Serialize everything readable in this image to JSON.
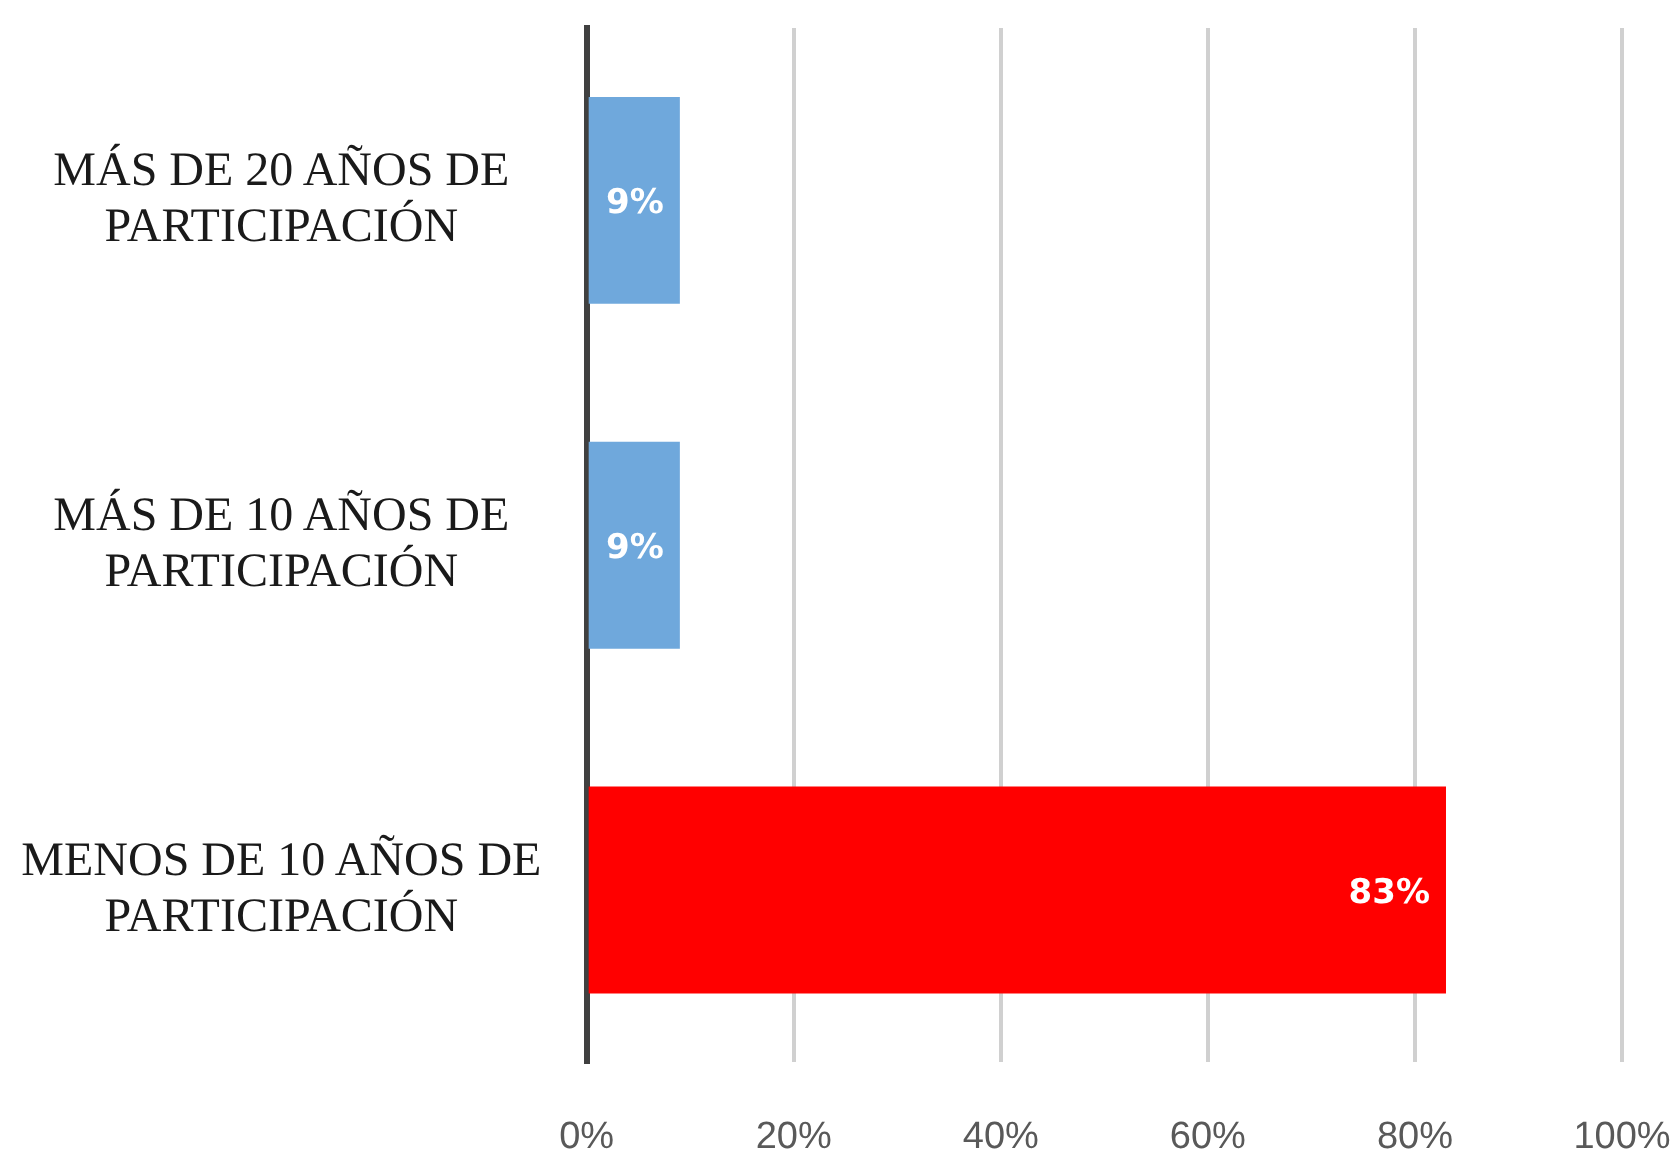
{
  "chart_data": {
    "type": "bar",
    "orientation": "horizontal",
    "categories": [
      "MÁS DE 20 AÑOS DE PARTICIPACIÓN",
      "MÁS DE 10 AÑOS DE PARTICIPACIÓN",
      "MENOS DE 10 AÑOS DE PARTICIPACIÓN"
    ],
    "values": [
      9,
      9,
      83
    ],
    "colors": [
      "#6fa8dc",
      "#6fa8dc",
      "#ff0000"
    ],
    "value_labels": [
      "9%",
      "9%",
      "83%"
    ],
    "xlim": [
      0,
      100
    ],
    "xticks": [
      {
        "value": 0,
        "label": "0%"
      },
      {
        "value": 20,
        "label": "20%"
      },
      {
        "value": 40,
        "label": "40%"
      },
      {
        "value": 60,
        "label": "60%"
      },
      {
        "value": 80,
        "label": "80%"
      },
      {
        "value": 100,
        "label": "100%"
      }
    ],
    "grid": "x"
  }
}
